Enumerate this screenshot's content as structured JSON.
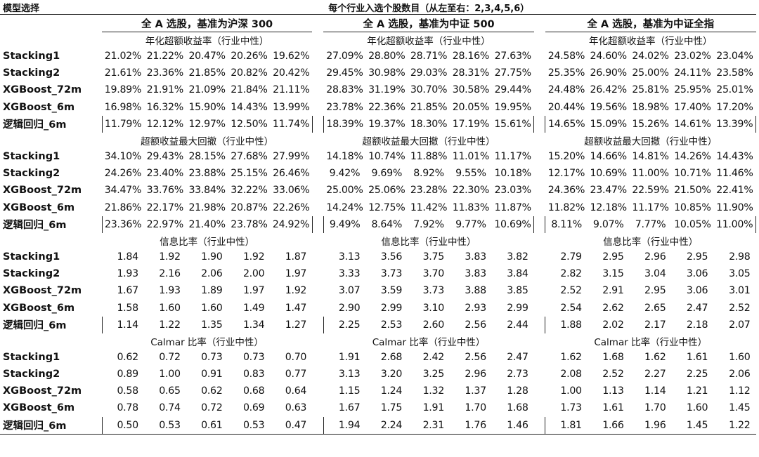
{
  "header": {
    "left": "模型选择",
    "center": "每个行业入选个股数目（从左至右：2,3,4,5,6）"
  },
  "groups": [
    "全 A 选股，基准为沪深 300",
    "全 A 选股，基准为中证 500",
    "全 A 选股，基准为中证全指"
  ],
  "sections": [
    {
      "metric": "年化超额收益率（行业中性）",
      "rows": [
        {
          "label": "Stacking1",
          "values": [
            [
              "21.02%",
              "21.22%",
              "20.47%",
              "20.26%",
              "19.62%"
            ],
            [
              "27.09%",
              "28.80%",
              "28.71%",
              "28.16%",
              "27.63%"
            ],
            [
              "24.58%",
              "24.60%",
              "24.02%",
              "23.02%",
              "23.04%"
            ]
          ]
        },
        {
          "label": "Stacking2",
          "values": [
            [
              "21.61%",
              "23.36%",
              "21.85%",
              "20.82%",
              "20.42%"
            ],
            [
              "29.45%",
              "30.98%",
              "29.03%",
              "28.31%",
              "27.75%"
            ],
            [
              "25.35%",
              "26.90%",
              "25.00%",
              "24.11%",
              "23.58%"
            ]
          ]
        },
        {
          "label": "XGBoost_72m",
          "values": [
            [
              "19.89%",
              "21.91%",
              "21.09%",
              "21.84%",
              "21.11%"
            ],
            [
              "28.83%",
              "31.19%",
              "30.70%",
              "30.58%",
              "29.44%"
            ],
            [
              "24.48%",
              "26.42%",
              "25.81%",
              "25.95%",
              "25.01%"
            ]
          ]
        },
        {
          "label": "XGBoost_6m",
          "values": [
            [
              "16.98%",
              "16.32%",
              "15.90%",
              "14.43%",
              "13.99%"
            ],
            [
              "23.78%",
              "22.36%",
              "21.85%",
              "20.05%",
              "19.95%"
            ],
            [
              "20.44%",
              "19.56%",
              "18.98%",
              "17.40%",
              "17.20%"
            ]
          ]
        },
        {
          "label": "逻辑回归_6m",
          "values": [
            [
              "11.79%",
              "12.12%",
              "12.97%",
              "12.50%",
              "11.74%"
            ],
            [
              "18.39%",
              "19.37%",
              "18.30%",
              "17.19%",
              "15.61%"
            ],
            [
              "14.65%",
              "15.09%",
              "15.26%",
              "14.61%",
              "13.39%"
            ]
          ]
        }
      ]
    },
    {
      "metric": "超额收益最大回撤（行业中性）",
      "rows": [
        {
          "label": "Stacking1",
          "values": [
            [
              "34.10%",
              "29.43%",
              "28.15%",
              "27.68%",
              "27.99%"
            ],
            [
              "14.18%",
              "10.74%",
              "11.88%",
              "11.01%",
              "11.17%"
            ],
            [
              "15.20%",
              "14.66%",
              "14.81%",
              "14.26%",
              "14.43%"
            ]
          ]
        },
        {
          "label": "Stacking2",
          "values": [
            [
              "24.26%",
              "23.40%",
              "23.88%",
              "25.15%",
              "26.46%"
            ],
            [
              "9.42%",
              "9.69%",
              "8.92%",
              "9.55%",
              "10.18%"
            ],
            [
              "12.17%",
              "10.69%",
              "11.00%",
              "10.71%",
              "11.46%"
            ]
          ]
        },
        {
          "label": "XGBoost_72m",
          "values": [
            [
              "34.47%",
              "33.76%",
              "33.84%",
              "32.22%",
              "33.06%"
            ],
            [
              "25.00%",
              "25.06%",
              "23.28%",
              "22.30%",
              "23.03%"
            ],
            [
              "24.36%",
              "23.47%",
              "22.59%",
              "21.50%",
              "22.41%"
            ]
          ]
        },
        {
          "label": "XGBoost_6m",
          "values": [
            [
              "21.86%",
              "22.17%",
              "21.98%",
              "20.87%",
              "22.26%"
            ],
            [
              "14.24%",
              "12.75%",
              "11.42%",
              "11.83%",
              "11.87%"
            ],
            [
              "11.82%",
              "12.18%",
              "11.17%",
              "10.85%",
              "11.90%"
            ]
          ]
        },
        {
          "label": "逻辑回归_6m",
          "values": [
            [
              "23.36%",
              "22.97%",
              "21.40%",
              "23.78%",
              "24.92%"
            ],
            [
              "9.49%",
              "8.64%",
              "7.92%",
              "9.77%",
              "10.69%"
            ],
            [
              "8.11%",
              "9.07%",
              "7.77%",
              "10.05%",
              "11.00%"
            ]
          ]
        }
      ]
    },
    {
      "metric": "信息比率（行业中性）",
      "rows": [
        {
          "label": "Stacking1",
          "values": [
            [
              "1.84",
              "1.92",
              "1.90",
              "1.92",
              "1.87"
            ],
            [
              "3.13",
              "3.56",
              "3.75",
              "3.83",
              "3.82"
            ],
            [
              "2.79",
              "2.95",
              "2.96",
              "2.95",
              "2.98"
            ]
          ]
        },
        {
          "label": "Stacking2",
          "values": [
            [
              "1.93",
              "2.16",
              "2.06",
              "2.00",
              "1.97"
            ],
            [
              "3.33",
              "3.73",
              "3.70",
              "3.83",
              "3.84"
            ],
            [
              "2.82",
              "3.15",
              "3.04",
              "3.06",
              "3.05"
            ]
          ]
        },
        {
          "label": "XGBoost_72m",
          "values": [
            [
              "1.67",
              "1.93",
              "1.89",
              "1.97",
              "1.92"
            ],
            [
              "3.07",
              "3.59",
              "3.73",
              "3.88",
              "3.85"
            ],
            [
              "2.52",
              "2.91",
              "2.95",
              "3.06",
              "3.01"
            ]
          ]
        },
        {
          "label": "XGBoost_6m",
          "values": [
            [
              "1.58",
              "1.60",
              "1.60",
              "1.49",
              "1.47"
            ],
            [
              "2.90",
              "2.99",
              "3.10",
              "2.93",
              "2.99"
            ],
            [
              "2.54",
              "2.62",
              "2.65",
              "2.47",
              "2.52"
            ]
          ]
        },
        {
          "label": "逻辑回归_6m",
          "values": [
            [
              "1.14",
              "1.22",
              "1.35",
              "1.34",
              "1.27"
            ],
            [
              "2.25",
              "2.53",
              "2.60",
              "2.56",
              "2.44"
            ],
            [
              "1.88",
              "2.02",
              "2.17",
              "2.18",
              "2.07"
            ]
          ]
        }
      ]
    },
    {
      "metric": "Calmar 比率（行业中性）",
      "rows": [
        {
          "label": "Stacking1",
          "values": [
            [
              "0.62",
              "0.72",
              "0.73",
              "0.73",
              "0.70"
            ],
            [
              "1.91",
              "2.68",
              "2.42",
              "2.56",
              "2.47"
            ],
            [
              "1.62",
              "1.68",
              "1.62",
              "1.61",
              "1.60"
            ]
          ]
        },
        {
          "label": "Stacking2",
          "values": [
            [
              "0.89",
              "1.00",
              "0.91",
              "0.83",
              "0.77"
            ],
            [
              "3.13",
              "3.20",
              "3.25",
              "2.96",
              "2.73"
            ],
            [
              "2.08",
              "2.52",
              "2.27",
              "2.25",
              "2.06"
            ]
          ]
        },
        {
          "label": "XGBoost_72m",
          "values": [
            [
              "0.58",
              "0.65",
              "0.62",
              "0.68",
              "0.64"
            ],
            [
              "1.15",
              "1.24",
              "1.32",
              "1.37",
              "1.28"
            ],
            [
              "1.00",
              "1.13",
              "1.14",
              "1.21",
              "1.12"
            ]
          ]
        },
        {
          "label": "XGBoost_6m",
          "values": [
            [
              "0.78",
              "0.74",
              "0.72",
              "0.69",
              "0.63"
            ],
            [
              "1.67",
              "1.75",
              "1.91",
              "1.70",
              "1.68"
            ],
            [
              "1.73",
              "1.61",
              "1.70",
              "1.60",
              "1.45"
            ]
          ]
        },
        {
          "label": "逻辑回归_6m",
          "values": [
            [
              "0.50",
              "0.53",
              "0.61",
              "0.53",
              "0.47"
            ],
            [
              "1.94",
              "2.24",
              "2.31",
              "1.76",
              "1.46"
            ],
            [
              "1.81",
              "1.66",
              "1.96",
              "1.45",
              "1.22"
            ]
          ]
        }
      ]
    }
  ]
}
